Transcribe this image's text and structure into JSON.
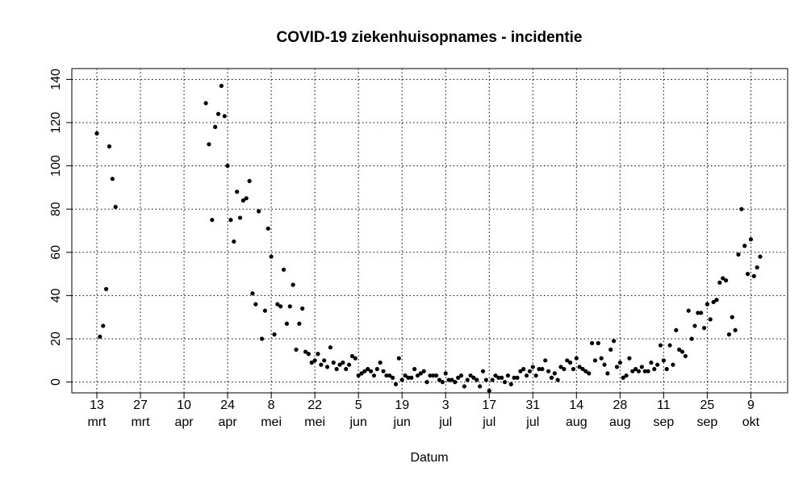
{
  "chart_data": {
    "type": "scatter",
    "title": "COVID-19 ziekenhuisopnames - incidentie",
    "xlabel": "Datum",
    "ylabel": "",
    "x_start": "2020-03-13",
    "x_end": "2020-10-12",
    "ylim": [
      -5,
      145
    ],
    "y_ticks": [
      0,
      20,
      40,
      60,
      80,
      100,
      120,
      140
    ],
    "grid": true,
    "legend": "none",
    "point_color": "#000000",
    "x_ticks": [
      {
        "date": "2020-03-13",
        "day": "13",
        "month": "mrt"
      },
      {
        "date": "2020-03-27",
        "day": "27",
        "month": "mrt"
      },
      {
        "date": "2020-04-10",
        "day": "10",
        "month": "apr"
      },
      {
        "date": "2020-04-24",
        "day": "24",
        "month": "apr"
      },
      {
        "date": "2020-05-08",
        "day": "8",
        "month": "mei"
      },
      {
        "date": "2020-05-22",
        "day": "22",
        "month": "mei"
      },
      {
        "date": "2020-06-05",
        "day": "5",
        "month": "jun"
      },
      {
        "date": "2020-06-19",
        "day": "19",
        "month": "jun"
      },
      {
        "date": "2020-07-03",
        "day": "3",
        "month": "jul"
      },
      {
        "date": "2020-07-17",
        "day": "17",
        "month": "jul"
      },
      {
        "date": "2020-07-31",
        "day": "31",
        "month": "jul"
      },
      {
        "date": "2020-08-14",
        "day": "14",
        "month": "aug"
      },
      {
        "date": "2020-08-28",
        "day": "28",
        "month": "aug"
      },
      {
        "date": "2020-09-11",
        "day": "11",
        "month": "sep"
      },
      {
        "date": "2020-09-25",
        "day": "25",
        "month": "sep"
      },
      {
        "date": "2020-10-09",
        "day": "9",
        "month": "okt"
      }
    ],
    "points": [
      {
        "x": "2020-03-13",
        "y": 115
      },
      {
        "x": "2020-03-14",
        "y": 21
      },
      {
        "x": "2020-03-15",
        "y": 26
      },
      {
        "x": "2020-03-16",
        "y": 43
      },
      {
        "x": "2020-03-17",
        "y": 109
      },
      {
        "x": "2020-03-18",
        "y": 94
      },
      {
        "x": "2020-03-19",
        "y": 81
      },
      {
        "x": "2020-04-17",
        "y": 129
      },
      {
        "x": "2020-04-18",
        "y": 110
      },
      {
        "x": "2020-04-19",
        "y": 75
      },
      {
        "x": "2020-04-20",
        "y": 118
      },
      {
        "x": "2020-04-21",
        "y": 124
      },
      {
        "x": "2020-04-22",
        "y": 137
      },
      {
        "x": "2020-04-23",
        "y": 123
      },
      {
        "x": "2020-04-24",
        "y": 100
      },
      {
        "x": "2020-04-25",
        "y": 75
      },
      {
        "x": "2020-04-26",
        "y": 65
      },
      {
        "x": "2020-04-27",
        "y": 88
      },
      {
        "x": "2020-04-28",
        "y": 76
      },
      {
        "x": "2020-04-29",
        "y": 84
      },
      {
        "x": "2020-04-30",
        "y": 85
      },
      {
        "x": "2020-05-01",
        "y": 93
      },
      {
        "x": "2020-05-02",
        "y": 41
      },
      {
        "x": "2020-05-03",
        "y": 36
      },
      {
        "x": "2020-05-04",
        "y": 79
      },
      {
        "x": "2020-05-05",
        "y": 20
      },
      {
        "x": "2020-05-06",
        "y": 33
      },
      {
        "x": "2020-05-07",
        "y": 71
      },
      {
        "x": "2020-05-08",
        "y": 58
      },
      {
        "x": "2020-05-09",
        "y": 22
      },
      {
        "x": "2020-05-10",
        "y": 36
      },
      {
        "x": "2020-05-11",
        "y": 35
      },
      {
        "x": "2020-05-12",
        "y": 52
      },
      {
        "x": "2020-05-13",
        "y": 27
      },
      {
        "x": "2020-05-14",
        "y": 35
      },
      {
        "x": "2020-05-15",
        "y": 45
      },
      {
        "x": "2020-05-16",
        "y": 15
      },
      {
        "x": "2020-05-17",
        "y": 27
      },
      {
        "x": "2020-05-18",
        "y": 34
      },
      {
        "x": "2020-05-19",
        "y": 14
      },
      {
        "x": "2020-05-20",
        "y": 13
      },
      {
        "x": "2020-05-21",
        "y": 9
      },
      {
        "x": "2020-05-22",
        "y": 10
      },
      {
        "x": "2020-05-23",
        "y": 13
      },
      {
        "x": "2020-05-24",
        "y": 8
      },
      {
        "x": "2020-05-25",
        "y": 10
      },
      {
        "x": "2020-05-26",
        "y": 7
      },
      {
        "x": "2020-05-27",
        "y": 16
      },
      {
        "x": "2020-05-28",
        "y": 9
      },
      {
        "x": "2020-05-29",
        "y": 6
      },
      {
        "x": "2020-05-30",
        "y": 8
      },
      {
        "x": "2020-05-31",
        "y": 9
      },
      {
        "x": "2020-06-01",
        "y": 6
      },
      {
        "x": "2020-06-02",
        "y": 8
      },
      {
        "x": "2020-06-03",
        "y": 12
      },
      {
        "x": "2020-06-04",
        "y": 11
      },
      {
        "x": "2020-06-05",
        "y": 3
      },
      {
        "x": "2020-06-06",
        "y": 4
      },
      {
        "x": "2020-06-07",
        "y": 5
      },
      {
        "x": "2020-06-08",
        "y": 6
      },
      {
        "x": "2020-06-09",
        "y": 5
      },
      {
        "x": "2020-06-10",
        "y": 3
      },
      {
        "x": "2020-06-11",
        "y": 6
      },
      {
        "x": "2020-06-12",
        "y": 9
      },
      {
        "x": "2020-06-13",
        "y": 5
      },
      {
        "x": "2020-06-14",
        "y": 3
      },
      {
        "x": "2020-06-15",
        "y": 3
      },
      {
        "x": "2020-06-16",
        "y": 2
      },
      {
        "x": "2020-06-17",
        "y": -1
      },
      {
        "x": "2020-06-18",
        "y": 11
      },
      {
        "x": "2020-06-19",
        "y": 1
      },
      {
        "x": "2020-06-20",
        "y": 3
      },
      {
        "x": "2020-06-21",
        "y": 2
      },
      {
        "x": "2020-06-22",
        "y": 2
      },
      {
        "x": "2020-06-23",
        "y": 6
      },
      {
        "x": "2020-06-24",
        "y": 3
      },
      {
        "x": "2020-06-25",
        "y": 4
      },
      {
        "x": "2020-06-26",
        "y": 5
      },
      {
        "x": "2020-06-27",
        "y": 0
      },
      {
        "x": "2020-06-28",
        "y": 3
      },
      {
        "x": "2020-06-29",
        "y": 3
      },
      {
        "x": "2020-06-30",
        "y": 3
      },
      {
        "x": "2020-07-01",
        "y": 1
      },
      {
        "x": "2020-07-02",
        "y": 0
      },
      {
        "x": "2020-07-03",
        "y": 4
      },
      {
        "x": "2020-07-04",
        "y": 1
      },
      {
        "x": "2020-07-05",
        "y": 1
      },
      {
        "x": "2020-07-06",
        "y": 0
      },
      {
        "x": "2020-07-07",
        "y": 2
      },
      {
        "x": "2020-07-08",
        "y": 3
      },
      {
        "x": "2020-07-09",
        "y": -2
      },
      {
        "x": "2020-07-10",
        "y": 1
      },
      {
        "x": "2020-07-11",
        "y": 3
      },
      {
        "x": "2020-07-12",
        "y": 2
      },
      {
        "x": "2020-07-13",
        "y": 1
      },
      {
        "x": "2020-07-14",
        "y": -2
      },
      {
        "x": "2020-07-15",
        "y": 5
      },
      {
        "x": "2020-07-16",
        "y": 1
      },
      {
        "x": "2020-07-17",
        "y": -4
      },
      {
        "x": "2020-07-18",
        "y": 1
      },
      {
        "x": "2020-07-19",
        "y": 3
      },
      {
        "x": "2020-07-20",
        "y": 2
      },
      {
        "x": "2020-07-21",
        "y": 2
      },
      {
        "x": "2020-07-22",
        "y": 0
      },
      {
        "x": "2020-07-23",
        "y": 3
      },
      {
        "x": "2020-07-24",
        "y": -1
      },
      {
        "x": "2020-07-25",
        "y": 2
      },
      {
        "x": "2020-07-26",
        "y": 2
      },
      {
        "x": "2020-07-27",
        "y": 5
      },
      {
        "x": "2020-07-28",
        "y": 6
      },
      {
        "x": "2020-07-29",
        "y": 3
      },
      {
        "x": "2020-07-30",
        "y": 5
      },
      {
        "x": "2020-07-31",
        "y": 7
      },
      {
        "x": "2020-08-01",
        "y": 3
      },
      {
        "x": "2020-08-02",
        "y": 6
      },
      {
        "x": "2020-08-03",
        "y": 6
      },
      {
        "x": "2020-08-04",
        "y": 10
      },
      {
        "x": "2020-08-05",
        "y": 5
      },
      {
        "x": "2020-08-06",
        "y": 2
      },
      {
        "x": "2020-08-07",
        "y": 4
      },
      {
        "x": "2020-08-08",
        "y": 1
      },
      {
        "x": "2020-08-09",
        "y": 7
      },
      {
        "x": "2020-08-10",
        "y": 6
      },
      {
        "x": "2020-08-11",
        "y": 10
      },
      {
        "x": "2020-08-12",
        "y": 9
      },
      {
        "x": "2020-08-13",
        "y": 6
      },
      {
        "x": "2020-08-14",
        "y": 11
      },
      {
        "x": "2020-08-15",
        "y": 7
      },
      {
        "x": "2020-08-16",
        "y": 6
      },
      {
        "x": "2020-08-17",
        "y": 5
      },
      {
        "x": "2020-08-18",
        "y": 4
      },
      {
        "x": "2020-08-19",
        "y": 18
      },
      {
        "x": "2020-08-20",
        "y": 10
      },
      {
        "x": "2020-08-21",
        "y": 18
      },
      {
        "x": "2020-08-22",
        "y": 11
      },
      {
        "x": "2020-08-23",
        "y": 8
      },
      {
        "x": "2020-08-24",
        "y": 4
      },
      {
        "x": "2020-08-25",
        "y": 15
      },
      {
        "x": "2020-08-26",
        "y": 19
      },
      {
        "x": "2020-08-27",
        "y": 7
      },
      {
        "x": "2020-08-28",
        "y": 9
      },
      {
        "x": "2020-08-29",
        "y": 2
      },
      {
        "x": "2020-08-30",
        "y": 3
      },
      {
        "x": "2020-08-31",
        "y": 11
      },
      {
        "x": "2020-09-01",
        "y": 5
      },
      {
        "x": "2020-09-02",
        "y": 6
      },
      {
        "x": "2020-09-03",
        "y": 5
      },
      {
        "x": "2020-09-04",
        "y": 7
      },
      {
        "x": "2020-09-05",
        "y": 5
      },
      {
        "x": "2020-09-06",
        "y": 5
      },
      {
        "x": "2020-09-07",
        "y": 9
      },
      {
        "x": "2020-09-08",
        "y": 6
      },
      {
        "x": "2020-09-09",
        "y": 8
      },
      {
        "x": "2020-09-10",
        "y": 17
      },
      {
        "x": "2020-09-11",
        "y": 10
      },
      {
        "x": "2020-09-12",
        "y": 6
      },
      {
        "x": "2020-09-13",
        "y": 17
      },
      {
        "x": "2020-09-14",
        "y": 8
      },
      {
        "x": "2020-09-15",
        "y": 24
      },
      {
        "x": "2020-09-16",
        "y": 15
      },
      {
        "x": "2020-09-17",
        "y": 14
      },
      {
        "x": "2020-09-18",
        "y": 12
      },
      {
        "x": "2020-09-19",
        "y": 33
      },
      {
        "x": "2020-09-20",
        "y": 20
      },
      {
        "x": "2020-09-21",
        "y": 26
      },
      {
        "x": "2020-09-22",
        "y": 32
      },
      {
        "x": "2020-09-23",
        "y": 32
      },
      {
        "x": "2020-09-24",
        "y": 25
      },
      {
        "x": "2020-09-25",
        "y": 36
      },
      {
        "x": "2020-09-26",
        "y": 29
      },
      {
        "x": "2020-09-27",
        "y": 37
      },
      {
        "x": "2020-09-28",
        "y": 38
      },
      {
        "x": "2020-09-29",
        "y": 46
      },
      {
        "x": "2020-09-30",
        "y": 48
      },
      {
        "x": "2020-10-01",
        "y": 47
      },
      {
        "x": "2020-10-02",
        "y": 22
      },
      {
        "x": "2020-10-03",
        "y": 30
      },
      {
        "x": "2020-10-04",
        "y": 24
      },
      {
        "x": "2020-10-05",
        "y": 59
      },
      {
        "x": "2020-10-06",
        "y": 80
      },
      {
        "x": "2020-10-07",
        "y": 63
      },
      {
        "x": "2020-10-08",
        "y": 50
      },
      {
        "x": "2020-10-09",
        "y": 66
      },
      {
        "x": "2020-10-10",
        "y": 49
      },
      {
        "x": "2020-10-11",
        "y": 53
      },
      {
        "x": "2020-10-12",
        "y": 58
      }
    ]
  }
}
